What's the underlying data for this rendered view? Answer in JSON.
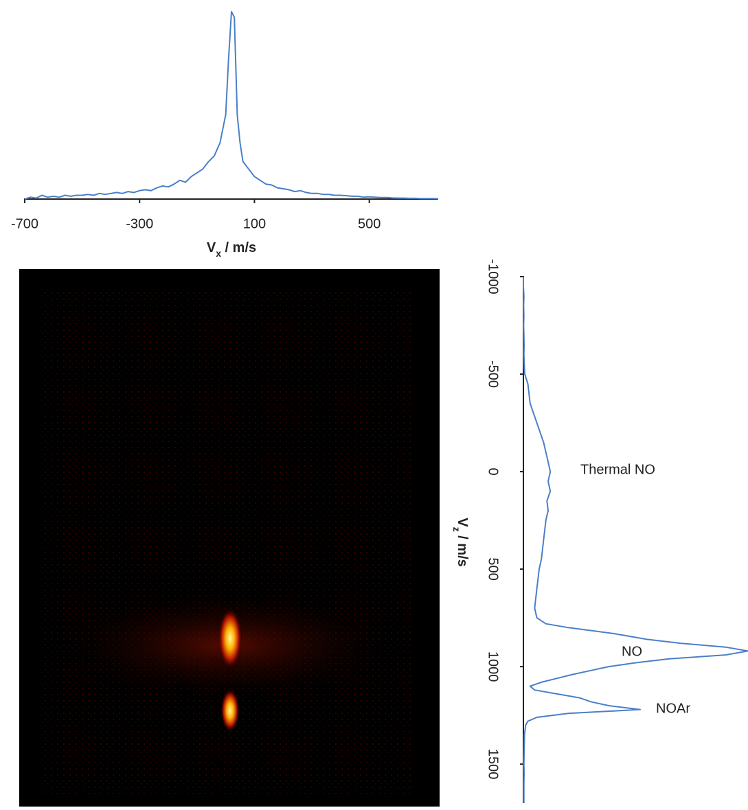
{
  "chart_data": [
    {
      "type": "line",
      "orientation": "horizontal",
      "color": "#4a7fc8",
      "xlabel": [
        "V",
        "x",
        " / m/s"
      ],
      "xlim": [
        -700,
        740
      ],
      "xticks": [
        -700,
        -300,
        100,
        500
      ],
      "ylim": [
        0,
        1
      ],
      "x": [
        -700,
        -680,
        -660,
        -640,
        -620,
        -600,
        -580,
        -560,
        -540,
        -520,
        -500,
        -480,
        -460,
        -440,
        -420,
        -400,
        -380,
        -360,
        -340,
        -320,
        -300,
        -280,
        -260,
        -240,
        -220,
        -200,
        -180,
        -160,
        -140,
        -120,
        -100,
        -80,
        -60,
        -40,
        -20,
        0,
        10,
        20,
        30,
        40,
        50,
        60,
        80,
        100,
        120,
        140,
        160,
        180,
        200,
        220,
        240,
        260,
        280,
        300,
        320,
        340,
        360,
        380,
        400,
        420,
        440,
        460,
        480,
        500,
        520,
        540,
        560,
        580,
        600,
        620,
        640,
        660,
        680,
        700,
        720,
        740
      ],
      "values": [
        0,
        0.01,
        0.005,
        0.02,
        0.01,
        0.015,
        0.01,
        0.02,
        0.015,
        0.02,
        0.02,
        0.025,
        0.02,
        0.03,
        0.025,
        0.03,
        0.035,
        0.03,
        0.04,
        0.035,
        0.045,
        0.05,
        0.045,
        0.06,
        0.07,
        0.065,
        0.08,
        0.1,
        0.09,
        0.12,
        0.14,
        0.16,
        0.2,
        0.23,
        0.3,
        0.45,
        0.75,
        1.0,
        0.97,
        0.45,
        0.3,
        0.2,
        0.16,
        0.12,
        0.1,
        0.08,
        0.075,
        0.06,
        0.055,
        0.05,
        0.04,
        0.045,
        0.035,
        0.03,
        0.03,
        0.025,
        0.025,
        0.02,
        0.02,
        0.018,
        0.015,
        0.015,
        0.01,
        0.012,
        0.01,
        0.008,
        0.008,
        0.006,
        0.005,
        0.005,
        0.004,
        0.004,
        0.003,
        0.003,
        0.003,
        0.002
      ]
    },
    {
      "type": "line",
      "orientation": "vertical",
      "color": "#4a7fc8",
      "xlabel": [
        "V",
        "z",
        " / m/s"
      ],
      "xlim": [
        -1000,
        1700
      ],
      "xticks": [
        -1000,
        -500,
        0,
        500,
        1000,
        1500
      ],
      "ylim": [
        0,
        1
      ],
      "x": [
        -1000,
        -950,
        -900,
        -850,
        -800,
        -750,
        -700,
        -650,
        -600,
        -550,
        -500,
        -450,
        -400,
        -350,
        -300,
        -250,
        -200,
        -150,
        -100,
        -50,
        0,
        50,
        100,
        150,
        200,
        250,
        300,
        350,
        400,
        450,
        500,
        550,
        600,
        650,
        700,
        750,
        780,
        800,
        830,
        860,
        880,
        900,
        920,
        940,
        960,
        980,
        1000,
        1020,
        1040,
        1060,
        1080,
        1100,
        1120,
        1140,
        1160,
        1180,
        1200,
        1220,
        1240,
        1260,
        1280,
        1300,
        1350,
        1400,
        1450,
        1500,
        1550,
        1600,
        1650,
        1700
      ],
      "values": [
        0,
        0,
        0.002,
        0.001,
        0.002,
        0.001,
        0.002,
        0.003,
        0.002,
        0.004,
        0.006,
        0.02,
        0.025,
        0.03,
        0.045,
        0.06,
        0.075,
        0.09,
        0.1,
        0.11,
        0.12,
        0.11,
        0.12,
        0.105,
        0.11,
        0.1,
        0.095,
        0.09,
        0.085,
        0.08,
        0.07,
        0.065,
        0.06,
        0.055,
        0.05,
        0.06,
        0.1,
        0.2,
        0.4,
        0.55,
        0.7,
        0.9,
        1.0,
        0.9,
        0.65,
        0.5,
        0.38,
        0.3,
        0.22,
        0.15,
        0.08,
        0.03,
        0.05,
        0.15,
        0.25,
        0.3,
        0.38,
        0.52,
        0.2,
        0.06,
        0.02,
        0.01,
        0.005,
        0.004,
        0.003,
        0.002,
        0.003,
        0.002,
        0.002,
        0.002
      ],
      "annotations": [
        {
          "text": "Thermal NO"
        },
        {
          "text": "NO"
        },
        {
          "text": "NOAr"
        }
      ]
    }
  ]
}
